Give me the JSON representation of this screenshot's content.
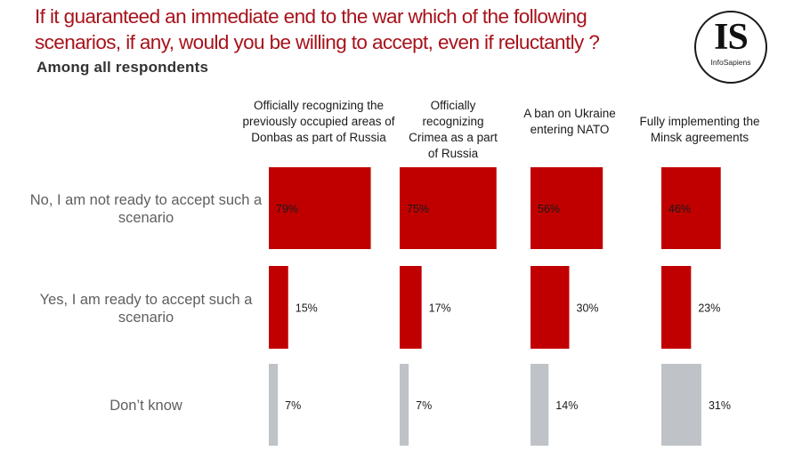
{
  "title": "If it guaranteed an immediate end to the war which of the following scenarios, if any, would you be willing to accept, even if reluctantly ?",
  "subtitle": "Among all respondents",
  "logo": {
    "mark": "IS",
    "name": "InfoSapiens"
  },
  "colors": {
    "accept_no": "#c00000",
    "accept_yes": "#c00000",
    "dont_know": "#bfc3c7",
    "title": "#a8121b"
  },
  "chart_data": {
    "type": "bar",
    "orientation": "horizontal",
    "layout": "small-multiples",
    "title": "If it guaranteed an immediate end to the war which of the following scenarios, if any, would you be willing to accept, even if reluctantly ?",
    "subtitle": "Among all respondents",
    "categories": [
      "No, I am not ready to accept such a scenario",
      "Yes, I am ready to accept such a scenario",
      "Don’t know"
    ],
    "series": [
      {
        "name": "Officially recognizing the previously occupied areas of Donbas as part of Russia",
        "values": [
          79,
          15,
          7
        ],
        "labels": [
          "79%",
          "15%",
          "7%"
        ]
      },
      {
        "name": "Officially recognizing Crimea as a part of Russia",
        "values": [
          75,
          17,
          7
        ],
        "labels": [
          "75%",
          "17%",
          "7%"
        ]
      },
      {
        "name": "A ban on Ukraine entering NATO",
        "values": [
          56,
          30,
          14
        ],
        "labels": [
          "56%",
          "30%",
          "14%"
        ]
      },
      {
        "name": "Fully implementing the Minsk agreements",
        "values": [
          46,
          23,
          31
        ],
        "labels": [
          "46%",
          "23%",
          "31%"
        ]
      }
    ],
    "units": "%",
    "grid": false,
    "legend": "none"
  }
}
